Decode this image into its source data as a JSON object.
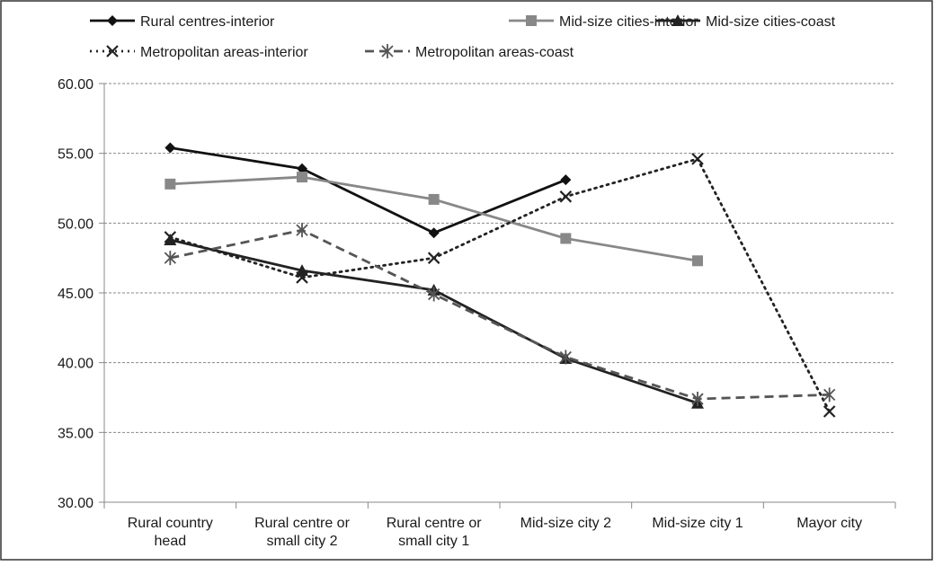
{
  "chart_data": {
    "type": "line",
    "title": "",
    "xlabel": "",
    "ylabel": "",
    "categories": [
      [
        "Rural country",
        "head"
      ],
      [
        "Rural centre or",
        "small city 2"
      ],
      [
        "Rural centre or",
        "small city 1"
      ],
      [
        "Mid-size city 2"
      ],
      [
        "Mid-size city 1"
      ],
      [
        "Mayor city"
      ]
    ],
    "ylim": [
      30,
      60
    ],
    "yticks": [
      30,
      35,
      40,
      45,
      50,
      55,
      60
    ],
    "ytick_labels": [
      "30.00",
      "35.00",
      "40.00",
      "45.00",
      "50.00",
      "55.00",
      "60.00"
    ],
    "grid": true,
    "legend_position": "top",
    "series": [
      {
        "name": "Rural centres-interior",
        "values": [
          55.4,
          53.9,
          49.3,
          53.1,
          null,
          null
        ],
        "color": "#111111",
        "style": "solid",
        "marker": "diamond"
      },
      {
        "name": "Mid-size cities-interior",
        "values": [
          52.8,
          53.3,
          51.7,
          48.9,
          47.3,
          null
        ],
        "color": "#888888",
        "style": "solid",
        "marker": "square"
      },
      {
        "name": "Mid-size cities-coast",
        "values": [
          48.8,
          46.6,
          45.2,
          40.3,
          37.1,
          null
        ],
        "color": "#222222",
        "style": "solid",
        "marker": "triangle"
      },
      {
        "name": "Metropolitan areas-interior",
        "values": [
          49.0,
          46.1,
          47.5,
          51.9,
          54.6,
          36.5
        ],
        "color": "#222222",
        "style": "dotted",
        "marker": "x"
      },
      {
        "name": "Metropolitan areas-coast",
        "values": [
          47.5,
          49.5,
          44.9,
          40.4,
          37.4,
          37.7
        ],
        "color": "#555555",
        "style": "dashed",
        "marker": "asterisk"
      }
    ]
  }
}
